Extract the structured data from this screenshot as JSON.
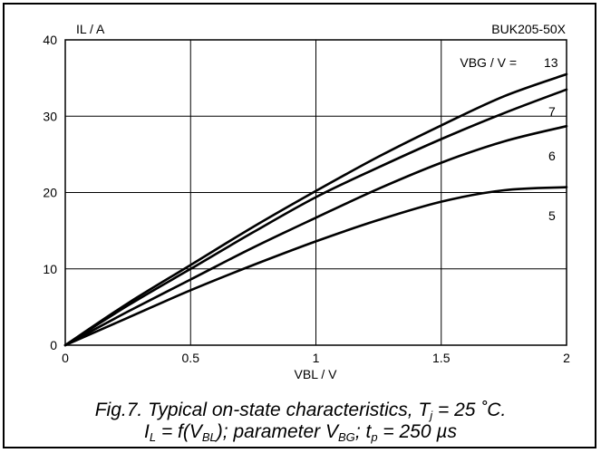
{
  "chart_data": {
    "type": "line",
    "id_label": "BUK205-50X",
    "ylabel": "IL / A",
    "xlabel": "VBL / V",
    "xlim": [
      0,
      2
    ],
    "ylim": [
      0,
      40
    ],
    "x_ticks": [
      "0",
      "0.5",
      "1",
      "1.5",
      "2"
    ],
    "y_ticks": [
      "0",
      "10",
      "20",
      "30",
      "40"
    ],
    "grid": true,
    "legend_title": "VBG / V =",
    "series": [
      {
        "name": "13",
        "x": [
          0,
          0.25,
          0.5,
          0.75,
          1.0,
          1.25,
          1.5,
          1.75,
          2.0
        ],
        "y": [
          0,
          5.5,
          10.5,
          15.5,
          20.2,
          24.7,
          28.8,
          32.6,
          35.5
        ]
      },
      {
        "name": "7",
        "x": [
          0,
          0.25,
          0.5,
          0.75,
          1.0,
          1.25,
          1.5,
          1.75,
          2.0
        ],
        "y": [
          0,
          5.2,
          10.0,
          14.8,
          19.4,
          23.3,
          27.0,
          30.4,
          33.5
        ]
      },
      {
        "name": "6",
        "x": [
          0,
          0.25,
          0.5,
          0.75,
          1.0,
          1.25,
          1.5,
          1.75,
          2.0
        ],
        "y": [
          0,
          4.4,
          8.6,
          12.8,
          16.7,
          20.5,
          23.9,
          26.7,
          28.7
        ]
      },
      {
        "name": "5",
        "x": [
          0,
          0.25,
          0.5,
          0.75,
          1.0,
          1.25,
          1.5,
          1.75,
          2.0
        ],
        "y": [
          0,
          3.6,
          7.2,
          10.5,
          13.6,
          16.4,
          18.8,
          20.3,
          20.7
        ]
      }
    ]
  },
  "caption": {
    "line1_prefix": "Fig.7.   Typical on-state characteristics, T",
    "line1_sub": "j",
    "line1_suffix": " = 25 ˚C.",
    "line2_a": "I",
    "line2_a_sub": "L",
    "line2_b": " = f(V",
    "line2_b_sub": "BL",
    "line2_c": "); parameter V",
    "line2_c_sub": "BG",
    "line2_d": "; t",
    "line2_d_sub": "p",
    "line2_e": " = 250 µs"
  }
}
